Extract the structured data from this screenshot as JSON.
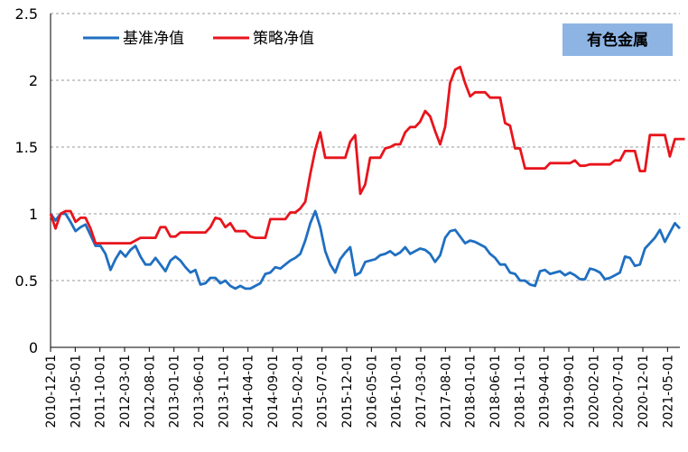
{
  "chart_data": {
    "type": "line",
    "title": "",
    "xlabel": "",
    "ylabel": "",
    "ylim": [
      0,
      2.5
    ],
    "yticks": [
      0,
      0.5,
      1,
      1.5,
      2,
      2.5
    ],
    "ytick_labels": [
      "0",
      "0.5",
      "1",
      "1.5",
      "2",
      "2.5"
    ],
    "grid": "horizontal-dashed",
    "legend_position": "top-left",
    "annotation": {
      "text": "有色金属",
      "bg": "#8eb4e3",
      "position": "top-right"
    },
    "x_tick_labels": [
      "2010-12-01",
      "2011-05-01",
      "2011-10-01",
      "2012-03-01",
      "2012-08-01",
      "2013-01-01",
      "2013-06-01",
      "2013-11-01",
      "2014-04-01",
      "2014-09-01",
      "2015-02-01",
      "2015-07-01",
      "2015-12-01",
      "2016-05-01",
      "2016-10-01",
      "2017-03-01",
      "2017-08-01",
      "2018-01-01",
      "2018-06-01",
      "2018-11-01",
      "2019-04-01",
      "2019-09-01",
      "2020-02-01",
      "2020-07-01",
      "2020-12-01",
      "2021-05-01"
    ],
    "series": [
      {
        "name": "基准净值",
        "color": "#1f6fc1",
        "values": [
          1.0,
          0.95,
          1.0,
          1.0,
          0.94,
          0.87,
          0.9,
          0.92,
          0.84,
          0.76,
          0.76,
          0.7,
          0.58,
          0.66,
          0.72,
          0.68,
          0.73,
          0.76,
          0.68,
          0.62,
          0.62,
          0.67,
          0.62,
          0.57,
          0.65,
          0.68,
          0.65,
          0.6,
          0.56,
          0.58,
          0.47,
          0.48,
          0.52,
          0.52,
          0.48,
          0.5,
          0.46,
          0.44,
          0.46,
          0.44,
          0.44,
          0.46,
          0.48,
          0.55,
          0.56,
          0.6,
          0.59,
          0.62,
          0.65,
          0.67,
          0.7,
          0.8,
          0.93,
          1.02,
          0.9,
          0.72,
          0.62,
          0.56,
          0.66,
          0.71,
          0.75,
          0.54,
          0.56,
          0.64,
          0.65,
          0.66,
          0.69,
          0.7,
          0.72,
          0.69,
          0.71,
          0.75,
          0.7,
          0.72,
          0.74,
          0.73,
          0.7,
          0.64,
          0.69,
          0.82,
          0.87,
          0.88,
          0.83,
          0.78,
          0.8,
          0.79,
          0.77,
          0.75,
          0.7,
          0.67,
          0.62,
          0.62,
          0.56,
          0.55,
          0.5,
          0.5,
          0.47,
          0.46,
          0.57,
          0.58,
          0.55,
          0.56,
          0.57,
          0.54,
          0.56,
          0.54,
          0.51,
          0.51,
          0.59,
          0.58,
          0.56,
          0.51,
          0.52,
          0.54,
          0.56,
          0.68,
          0.67,
          0.61,
          0.62,
          0.74,
          0.78,
          0.82,
          0.88,
          0.79,
          0.86,
          0.93,
          0.89
        ]
      },
      {
        "name": "策略净值",
        "color": "#e8141c",
        "values": [
          1.0,
          0.89,
          1.0,
          1.02,
          1.02,
          0.94,
          0.97,
          0.97,
          0.89,
          0.78,
          0.78,
          0.78,
          0.78,
          0.78,
          0.78,
          0.78,
          0.78,
          0.8,
          0.82,
          0.82,
          0.82,
          0.82,
          0.9,
          0.9,
          0.83,
          0.83,
          0.86,
          0.86,
          0.86,
          0.86,
          0.86,
          0.86,
          0.9,
          0.97,
          0.96,
          0.9,
          0.93,
          0.87,
          0.87,
          0.87,
          0.83,
          0.82,
          0.82,
          0.82,
          0.96,
          0.96,
          0.96,
          0.96,
          1.01,
          1.01,
          1.04,
          1.09,
          1.3,
          1.48,
          1.61,
          1.42,
          1.42,
          1.42,
          1.42,
          1.42,
          1.54,
          1.59,
          1.15,
          1.22,
          1.42,
          1.42,
          1.42,
          1.49,
          1.5,
          1.52,
          1.52,
          1.61,
          1.65,
          1.65,
          1.69,
          1.77,
          1.73,
          1.62,
          1.52,
          1.65,
          1.98,
          2.08,
          2.1,
          1.98,
          1.88,
          1.91,
          1.91,
          1.91,
          1.87,
          1.87,
          1.87,
          1.68,
          1.66,
          1.49,
          1.49,
          1.34,
          1.34,
          1.34,
          1.34,
          1.34,
          1.38,
          1.38,
          1.38,
          1.38,
          1.38,
          1.4,
          1.36,
          1.36,
          1.37,
          1.37,
          1.37,
          1.37,
          1.37,
          1.4,
          1.4,
          1.47,
          1.47,
          1.47,
          1.32,
          1.32,
          1.59,
          1.59,
          1.59,
          1.59,
          1.43,
          1.56,
          1.56,
          1.56
        ]
      }
    ]
  }
}
